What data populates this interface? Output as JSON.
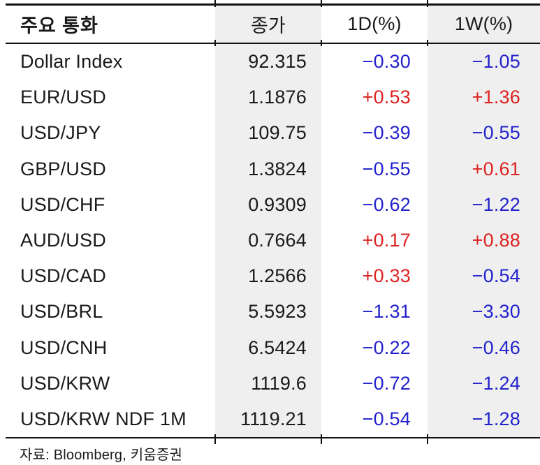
{
  "colors": {
    "positive": "#dd2222",
    "negative": "#2222cc",
    "column_shade": "#efefef",
    "rule": "#111111",
    "text": "#1a1a1a"
  },
  "table": {
    "columns": [
      "주요 통화",
      "종가",
      "1D(%)",
      "1W(%)"
    ],
    "rows": [
      {
        "name": "Dollar Index",
        "close": "92.315",
        "d1": "−0.30",
        "w1": "−1.05"
      },
      {
        "name": "EUR/USD",
        "close": "1.1876",
        "d1": "+0.53",
        "w1": "+1.36"
      },
      {
        "name": "USD/JPY",
        "close": "109.75",
        "d1": "−0.39",
        "w1": "−0.55"
      },
      {
        "name": "GBP/USD",
        "close": "1.3824",
        "d1": "−0.55",
        "w1": "+0.61"
      },
      {
        "name": "USD/CHF",
        "close": "0.9309",
        "d1": "−0.62",
        "w1": "−1.22"
      },
      {
        "name": "AUD/USD",
        "close": "0.7664",
        "d1": "+0.17",
        "w1": "+0.88"
      },
      {
        "name": "USD/CAD",
        "close": "1.2566",
        "d1": "+0.33",
        "w1": "−0.54"
      },
      {
        "name": "USD/BRL",
        "close": "5.5923",
        "d1": "−1.31",
        "w1": "−3.30"
      },
      {
        "name": "USD/CNH",
        "close": "6.5424",
        "d1": "−0.22",
        "w1": "−0.46"
      },
      {
        "name": "USD/KRW",
        "close": "1119.6",
        "d1": "−0.72",
        "w1": "−1.24"
      },
      {
        "name": "USD/KRW NDF 1M",
        "close": "1119.21",
        "d1": "−0.54",
        "w1": "−1.28"
      }
    ]
  },
  "footer": {
    "source": "자료: Bloomberg,  키움증권"
  }
}
